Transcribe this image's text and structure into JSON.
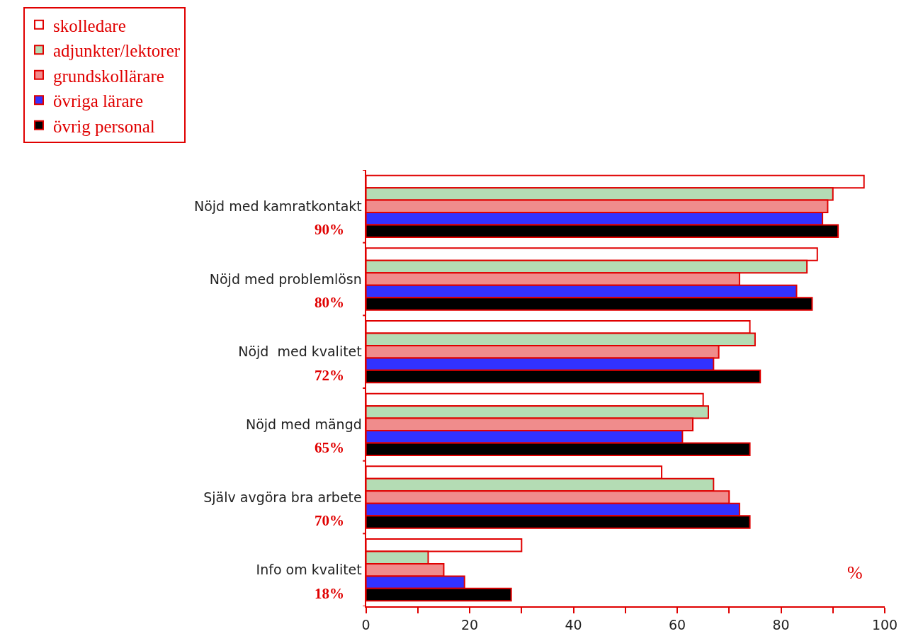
{
  "chart_data": {
    "type": "bar",
    "orientation": "horizontal",
    "xlabel": "%",
    "categories": [
      "Nöjd med kamratkontakt",
      "Nöjd med problemlösn",
      "Nöjd  med kvalitet",
      "Nöjd med mängd",
      "Själv avgöra bra arbete",
      "Info om kvalitet"
    ],
    "series": [
      {
        "name": "skolledare",
        "color": "#ffffff",
        "values": [
          96,
          87,
          74,
          65,
          57,
          30
        ]
      },
      {
        "name": "adjunkter/lektorer",
        "color": "#b4dcb4",
        "values": [
          90,
          85,
          75,
          66,
          67,
          12
        ]
      },
      {
        "name": "grundskollärare",
        "color": "#f08c8c",
        "values": [
          89,
          72,
          68,
          63,
          70,
          15
        ]
      },
      {
        "name": "övriga lärare",
        "color": "#3232ff",
        "values": [
          88,
          83,
          67,
          61,
          72,
          19
        ]
      },
      {
        "name": "övrig personal",
        "color": "#000000",
        "values": [
          91,
          86,
          76,
          74,
          74,
          28
        ]
      }
    ],
    "annotations": [
      "90%",
      "80%",
      "72%",
      "65%",
      "70%",
      "18%"
    ],
    "xlim": [
      0,
      100
    ],
    "xticks": [
      0,
      {
        "value": 10,
        "label": null
      },
      20,
      {
        "value": 30,
        "label": null
      },
      40,
      {
        "value": 50,
        "label": null
      },
      60,
      {
        "value": 70,
        "label": null
      },
      80,
      {
        "value": 90,
        "label": null
      },
      100
    ],
    "legend": "top left"
  }
}
